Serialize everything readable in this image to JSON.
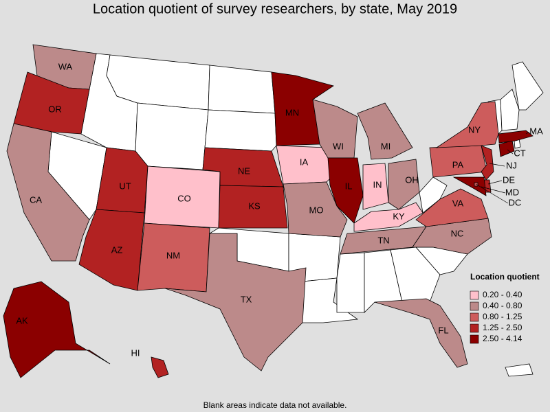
{
  "title": "Location quotient of survey researchers, by state, May 2019",
  "note": "Blank areas indicate data not available.",
  "legend": {
    "title": "Location quotient",
    "items": [
      {
        "label": "0.20 - 0.40",
        "color": "#ffc0cb"
      },
      {
        "label": "0.40 - 0.80",
        "color": "#bc8a8a"
      },
      {
        "label": "0.80 - 1.25",
        "color": "#cd5c5c"
      },
      {
        "label": "1.25 - 2.50",
        "color": "#b22222"
      },
      {
        "label": "2.50 - 4.14",
        "color": "#8b0000"
      }
    ]
  },
  "states": [
    {
      "label": "WA",
      "range": "0.40 - 0.80"
    },
    {
      "label": "OR",
      "range": "1.25 - 2.50"
    },
    {
      "label": "CA",
      "range": "0.40 - 0.80"
    },
    {
      "label": "UT",
      "range": "1.25 - 2.50"
    },
    {
      "label": "AZ",
      "range": "1.25 - 2.50"
    },
    {
      "label": "CO",
      "range": "0.20 - 0.40"
    },
    {
      "label": "NM",
      "range": "0.80 - 1.25"
    },
    {
      "label": "NE",
      "range": "1.25 - 2.50"
    },
    {
      "label": "KS",
      "range": "1.25 - 2.50"
    },
    {
      "label": "TX",
      "range": "0.40 - 0.80"
    },
    {
      "label": "MN",
      "range": "2.50 - 4.14"
    },
    {
      "label": "IA",
      "range": "0.20 - 0.40"
    },
    {
      "label": "MO",
      "range": "0.40 - 0.80"
    },
    {
      "label": "WI",
      "range": "0.40 - 0.80"
    },
    {
      "label": "IL",
      "range": "2.50 - 4.14"
    },
    {
      "label": "MI",
      "range": "0.40 - 0.80"
    },
    {
      "label": "IN",
      "range": "0.20 - 0.40"
    },
    {
      "label": "OH",
      "range": "0.40 - 0.80"
    },
    {
      "label": "KY",
      "range": "0.20 - 0.40"
    },
    {
      "label": "TN",
      "range": "0.40 - 0.80"
    },
    {
      "label": "NC",
      "range": "0.40 - 0.80"
    },
    {
      "label": "VA",
      "range": "0.80 - 1.25"
    },
    {
      "label": "PA",
      "range": "0.80 - 1.25"
    },
    {
      "label": "NY",
      "range": "0.80 - 1.25"
    },
    {
      "label": "NJ",
      "range": "1.25 - 2.50"
    },
    {
      "label": "DE",
      "range": "1.25 - 2.50"
    },
    {
      "label": "MD",
      "range": "2.50 - 4.14"
    },
    {
      "label": "DC",
      "range": "0.80 - 1.25"
    },
    {
      "label": "CT",
      "range": "2.50 - 4.14"
    },
    {
      "label": "MA",
      "range": "2.50 - 4.14"
    },
    {
      "label": "FL",
      "range": "0.40 - 0.80"
    },
    {
      "label": "AK",
      "range": "2.50 - 4.14"
    },
    {
      "label": "HI",
      "range": "1.25 - 2.50"
    }
  ]
}
